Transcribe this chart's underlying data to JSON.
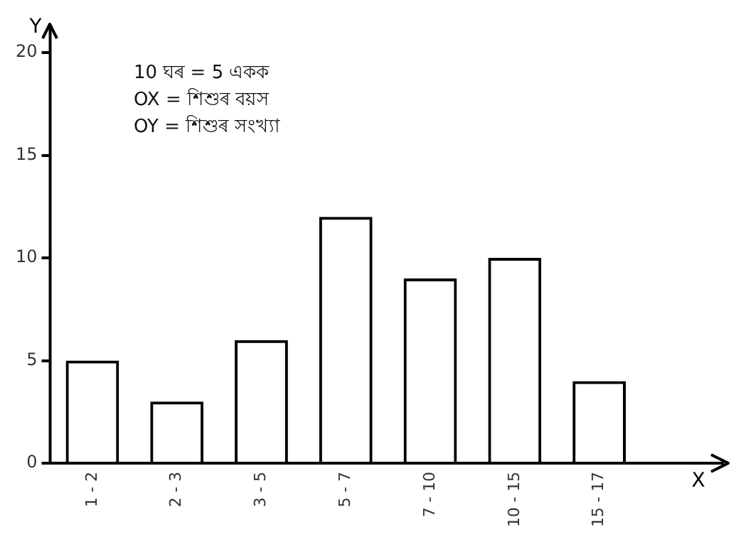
{
  "chart_data": {
    "type": "bar",
    "xlabel": "X",
    "ylabel": "Y",
    "categories": [
      "1 - 2",
      "2 - 3",
      "3 - 5",
      "5 - 7",
      "7 - 10",
      "10 - 15",
      "15 - 17"
    ],
    "values": [
      5,
      3,
      6,
      12,
      9,
      10,
      4
    ],
    "color": "#000000",
    "ylim": [
      0,
      21.3
    ],
    "yticks": [
      0,
      5,
      10,
      15,
      20
    ],
    "grid": false,
    "legend": false,
    "annotations": [
      "10 ঘৰ = 5 একক",
      "OX = শিশুৰ বয়স",
      "OY = শিশুৰ সংখ্যা"
    ]
  }
}
